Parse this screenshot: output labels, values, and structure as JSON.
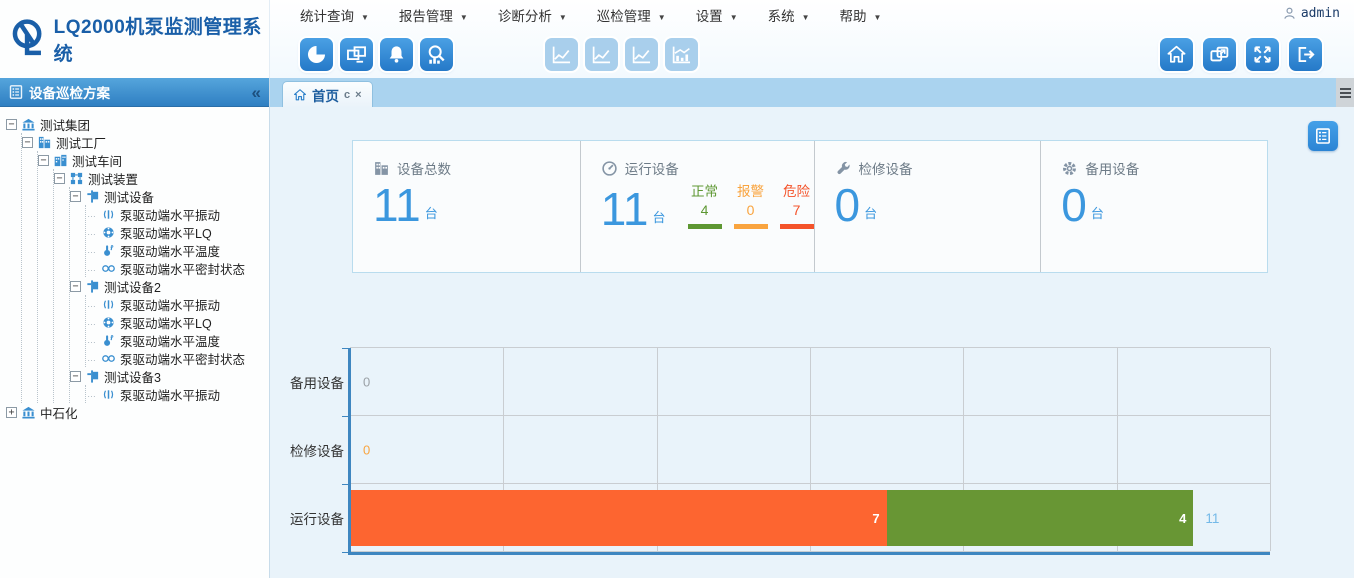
{
  "app": {
    "title": "LQ2000机泵监测管理系统",
    "user": "admin"
  },
  "menu": {
    "items": [
      {
        "label": "统计查询"
      },
      {
        "label": "报告管理"
      },
      {
        "label": "诊断分析"
      },
      {
        "label": "巡检管理"
      },
      {
        "label": "设置"
      },
      {
        "label": "系统"
      },
      {
        "label": "帮助"
      }
    ]
  },
  "toolbar": {
    "left": [
      {
        "icon": "statistics-pie-icon"
      },
      {
        "icon": "monitor-screens-icon"
      },
      {
        "icon": "alarm-bell-icon"
      },
      {
        "icon": "search-analysis-icon"
      }
    ],
    "middle_disabled": [
      {
        "icon": "temperature-trend-icon",
        "tag": "℃"
      },
      {
        "icon": "lq-trend-icon",
        "tag": "LQ"
      },
      {
        "icon": "vibration-trend-icon",
        "tag": "VIB"
      },
      {
        "icon": "spectrum-trend-icon",
        "tag": ""
      }
    ],
    "right": [
      {
        "icon": "home-icon"
      },
      {
        "icon": "multi-window-icon"
      },
      {
        "icon": "fullscreen-icon"
      },
      {
        "icon": "logout-icon"
      }
    ]
  },
  "sidebar": {
    "title": "设备巡检方案",
    "tree": [
      {
        "label": "测试集团",
        "icon": "org",
        "expanded": true,
        "children": [
          {
            "label": "测试工厂",
            "icon": "factory",
            "expanded": true,
            "children": [
              {
                "label": "测试车间",
                "icon": "workshop",
                "expanded": true,
                "children": [
                  {
                    "label": "测试装置",
                    "icon": "unit",
                    "expanded": true,
                    "children": [
                      {
                        "label": "测试设备",
                        "icon": "equipment",
                        "expanded": true,
                        "children": [
                          {
                            "label": "泵驱动端水平振动",
                            "icon": "vibration"
                          },
                          {
                            "label": "泵驱动端水平LQ",
                            "icon": "lq"
                          },
                          {
                            "label": "泵驱动端水平温度",
                            "icon": "temperature"
                          },
                          {
                            "label": "泵驱动端水平密封状态",
                            "icon": "seal"
                          }
                        ]
                      },
                      {
                        "label": "测试设备2",
                        "icon": "equipment",
                        "expanded": true,
                        "children": [
                          {
                            "label": "泵驱动端水平振动",
                            "icon": "vibration"
                          },
                          {
                            "label": "泵驱动端水平LQ",
                            "icon": "lq"
                          },
                          {
                            "label": "泵驱动端水平温度",
                            "icon": "temperature"
                          },
                          {
                            "label": "泵驱动端水平密封状态",
                            "icon": "seal"
                          }
                        ]
                      },
                      {
                        "label": "测试设备3",
                        "icon": "equipment",
                        "expanded": true,
                        "children": [
                          {
                            "label": "泵驱动端水平振动",
                            "icon": "vibration"
                          }
                        ]
                      }
                    ]
                  }
                ]
              }
            ]
          }
        ]
      },
      {
        "label": "中石化",
        "icon": "org",
        "expanded": false,
        "children": []
      }
    ]
  },
  "tabs": {
    "items": [
      {
        "label": "首页",
        "refresh": "c",
        "close": "×",
        "active": true
      }
    ]
  },
  "stats": {
    "cards": [
      {
        "icon": "factory-total-icon",
        "label": "设备总数",
        "value": "11",
        "unit": "台"
      },
      {
        "icon": "gauge-icon",
        "label": "运行设备",
        "value": "11",
        "unit": "台",
        "breakdown": [
          {
            "label": "正常",
            "value": "4",
            "color": "#5d9732"
          },
          {
            "label": "报警",
            "value": "0",
            "color": "#f9a43f"
          },
          {
            "label": "危险",
            "value": "7",
            "color": "#f4532a"
          }
        ]
      },
      {
        "icon": "wrench-icon",
        "label": "检修设备",
        "value": "0",
        "unit": "台"
      },
      {
        "icon": "gear-icon",
        "label": "备用设备",
        "value": "0",
        "unit": "台"
      }
    ]
  },
  "chart_data": {
    "type": "bar",
    "orientation": "horizontal-stacked",
    "categories": [
      "备用设备",
      "检修设备",
      "运行设备"
    ],
    "series": [
      {
        "name": "危险",
        "color": "#fd6530",
        "values": [
          0,
          0,
          7
        ]
      },
      {
        "name": "正常",
        "color": "#689634",
        "values": [
          0,
          0,
          4
        ]
      }
    ],
    "totals": [
      0,
      0,
      11
    ],
    "total_label_colors": [
      "#9aa0a6",
      "#f9a43f",
      "#74b9e8"
    ],
    "xlim": [
      0,
      12
    ],
    "grid_interval": 2,
    "grid": true,
    "axis_color": "#3e86c0",
    "xlabel": "",
    "ylabel": "",
    "title": ""
  },
  "colors": {
    "accent_blue": "#2e86d1",
    "title_blue": "#1a5fa8",
    "number_blue": "#3b97de",
    "content_bg": "#e9f3fa",
    "panel_border": "#b9dcee",
    "bar_danger": "#fd6530",
    "bar_normal": "#689634"
  }
}
